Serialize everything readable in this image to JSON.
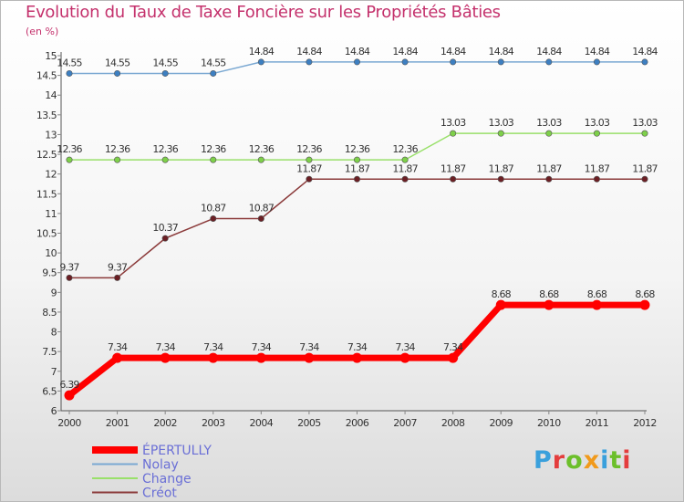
{
  "title": "Evolution du Taux de Taxe Foncière sur les Propriétés Bâties",
  "unit_label": "(en %)",
  "logo": {
    "text": "Proxiti",
    "letter_colors": [
      "#3aa0dc",
      "#e43d3d",
      "#6cbf2a",
      "#f19a1b",
      "#3aa0dc",
      "#6cbf2a",
      "#e43d3d"
    ]
  },
  "colors": {
    "title": "#c4316c",
    "axis": "#555555",
    "grid_tick": "#888888"
  },
  "chart_data": {
    "type": "line",
    "title": "Evolution du Taux de Taxe Foncière sur les Propriétés Bâties",
    "ylabel": "(en %)",
    "x": [
      "2000",
      "2001",
      "2002",
      "2003",
      "2004",
      "2005",
      "2006",
      "2007",
      "2008",
      "2009",
      "2010",
      "2011",
      "2012"
    ],
    "ylim": [
      6,
      15
    ],
    "yticks": [
      "6",
      "6.5",
      "7",
      "7.5",
      "8",
      "8.5",
      "9",
      "9.5",
      "10",
      "10.5",
      "11",
      "11.5",
      "12",
      "12.5",
      "13",
      "13.5",
      "14",
      "14.5",
      "15"
    ],
    "legend_position": "bottom-left",
    "series": [
      {
        "name": "ÉPERTULLY",
        "color": "#ff0000",
        "marker": "#ff0000",
        "width": 7,
        "values": [
          6.39,
          7.34,
          7.34,
          7.34,
          7.34,
          7.34,
          7.34,
          7.34,
          7.34,
          8.68,
          8.68,
          8.68,
          8.68
        ],
        "labels": [
          "6.39",
          "7.34",
          "7.34",
          "7.34",
          "7.34",
          "7.34",
          "7.34",
          "7.34",
          "7.34",
          "8.68",
          "8.68",
          "8.68",
          "8.68"
        ]
      },
      {
        "name": "Nolay",
        "color": "#7aa8d2",
        "marker": "#3d7fc1",
        "width": 1.5,
        "values": [
          14.55,
          14.55,
          14.55,
          14.55,
          14.84,
          14.84,
          14.84,
          14.84,
          14.84,
          14.84,
          14.84,
          14.84,
          14.84
        ],
        "labels": [
          "14.55",
          "14.55",
          "14.55",
          "14.55",
          "14.84",
          "14.84",
          "14.84",
          "14.84",
          "14.84",
          "14.84",
          "14.84",
          "14.84",
          "14.84"
        ]
      },
      {
        "name": "Change",
        "color": "#99e06a",
        "marker": "#7ed04a",
        "width": 1.5,
        "values": [
          12.36,
          12.36,
          12.36,
          12.36,
          12.36,
          12.36,
          12.36,
          12.36,
          13.03,
          13.03,
          13.03,
          13.03,
          13.03
        ],
        "labels": [
          "12.36",
          "12.36",
          "12.36",
          "12.36",
          "12.36",
          "12.36",
          "12.36",
          "12.36",
          "13.03",
          "13.03",
          "13.03",
          "13.03",
          "13.03"
        ]
      },
      {
        "name": "Créot",
        "color": "#8b3a3a",
        "marker": "#6b1f24",
        "width": 1.5,
        "values": [
          9.37,
          9.37,
          10.37,
          10.87,
          10.87,
          11.87,
          11.87,
          11.87,
          11.87,
          11.87,
          11.87,
          11.87,
          11.87
        ],
        "labels": [
          "9.37",
          "9.37",
          "10.37",
          "10.87",
          "10.87",
          "11.87",
          "11.87",
          "11.87",
          "11.87",
          "11.87",
          "11.87",
          "11.87",
          "11.87"
        ]
      }
    ]
  }
}
